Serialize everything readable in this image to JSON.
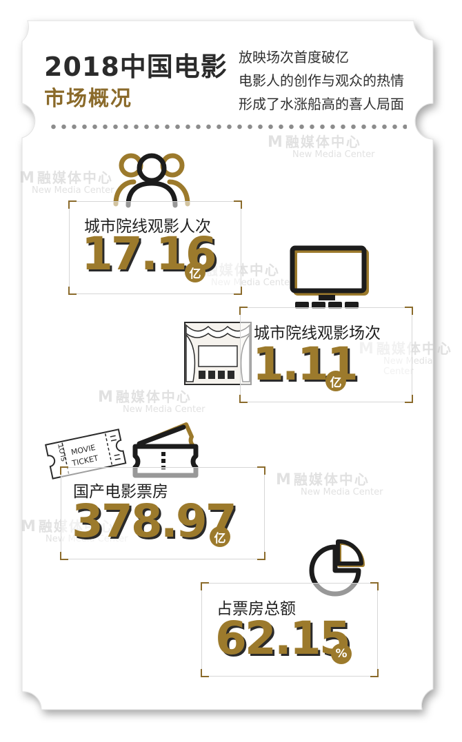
{
  "header": {
    "title_line1": "2018中国电影",
    "title_line2": "市场概况",
    "intro_lines": [
      "放映场次首度破亿",
      "电影人的创作与观众的热情",
      "形成了水涨船高的喜人局面"
    ]
  },
  "watermark": {
    "logo": "M",
    "cn": "融媒体中心",
    "en": "New Media Center"
  },
  "stats": [
    {
      "label": "城市院线观影人次",
      "value": "17.16",
      "unit": "亿",
      "icon": "people-icon"
    },
    {
      "label": "城市院线观影场次",
      "value": "1.11",
      "unit": "亿",
      "icon": "tv-screen-icon"
    },
    {
      "label": "国产电影票房",
      "value": "378.97",
      "unit": "亿",
      "icon": "ticket-icon"
    },
    {
      "label": "占票房总额",
      "value": "62.15",
      "unit": "%",
      "icon": "pie-chart-icon"
    }
  ],
  "ticket_illustration": {
    "line1": "MOVIE",
    "line2": "TICKET",
    "side": "SLOT"
  },
  "colors": {
    "accent": "#9c7a2c",
    "dark": "#2b2b2b",
    "background_paper": "#ffffff"
  }
}
